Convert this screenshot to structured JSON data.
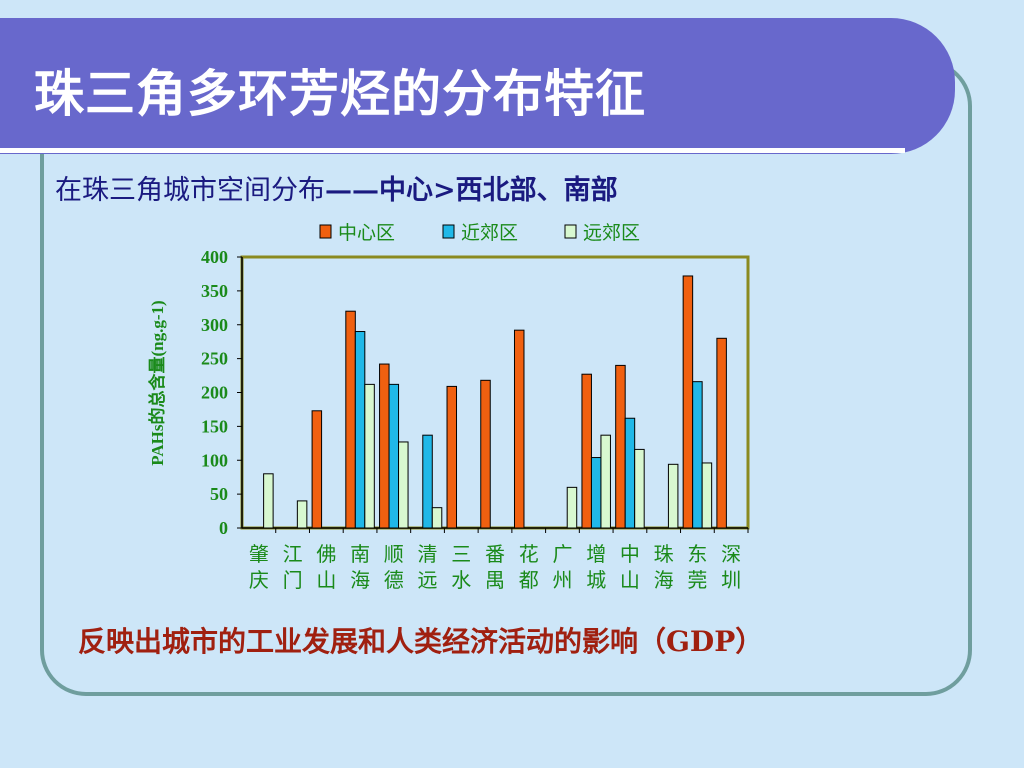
{
  "slide": {
    "title": "珠三角多环芳烃的分布特征",
    "subtitle_plain": "在珠三角城市空间分布",
    "subtitle_bold": "——中心>西北部、南部",
    "conclusion": "反映出城市的工业发展和人类经济活动的影响（GDP）"
  },
  "colors": {
    "title_bar": "#6868cc",
    "series": [
      "#f06010",
      "#20b8e8",
      "#d8f8d0"
    ],
    "axis_text": "#1a8a1a"
  },
  "chart_data": {
    "type": "bar",
    "ylabel": "PAHs的总含量(ng.g-1)",
    "ylim": [
      0,
      400
    ],
    "yticks": [
      0,
      50,
      100,
      150,
      200,
      250,
      300,
      350,
      400
    ],
    "categories": [
      "肇庆",
      "江门",
      "佛山",
      "南海",
      "顺德",
      "清远",
      "三水",
      "番禺",
      "花都",
      "广州",
      "增城",
      "中山",
      "珠海",
      "东莞",
      "深圳"
    ],
    "series": [
      {
        "name": "中心区",
        "values": [
          null,
          null,
          173,
          320,
          242,
          null,
          209,
          218,
          292,
          null,
          227,
          240,
          null,
          372,
          280
        ]
      },
      {
        "name": "近郊区",
        "values": [
          null,
          null,
          null,
          290,
          212,
          137,
          null,
          null,
          null,
          null,
          104,
          162,
          null,
          216,
          null
        ]
      },
      {
        "name": "远郊区",
        "values": [
          80,
          40,
          null,
          212,
          127,
          30,
          null,
          null,
          null,
          60,
          137,
          116,
          94,
          96,
          null
        ]
      }
    ],
    "legend_position": "top",
    "grid": false
  }
}
